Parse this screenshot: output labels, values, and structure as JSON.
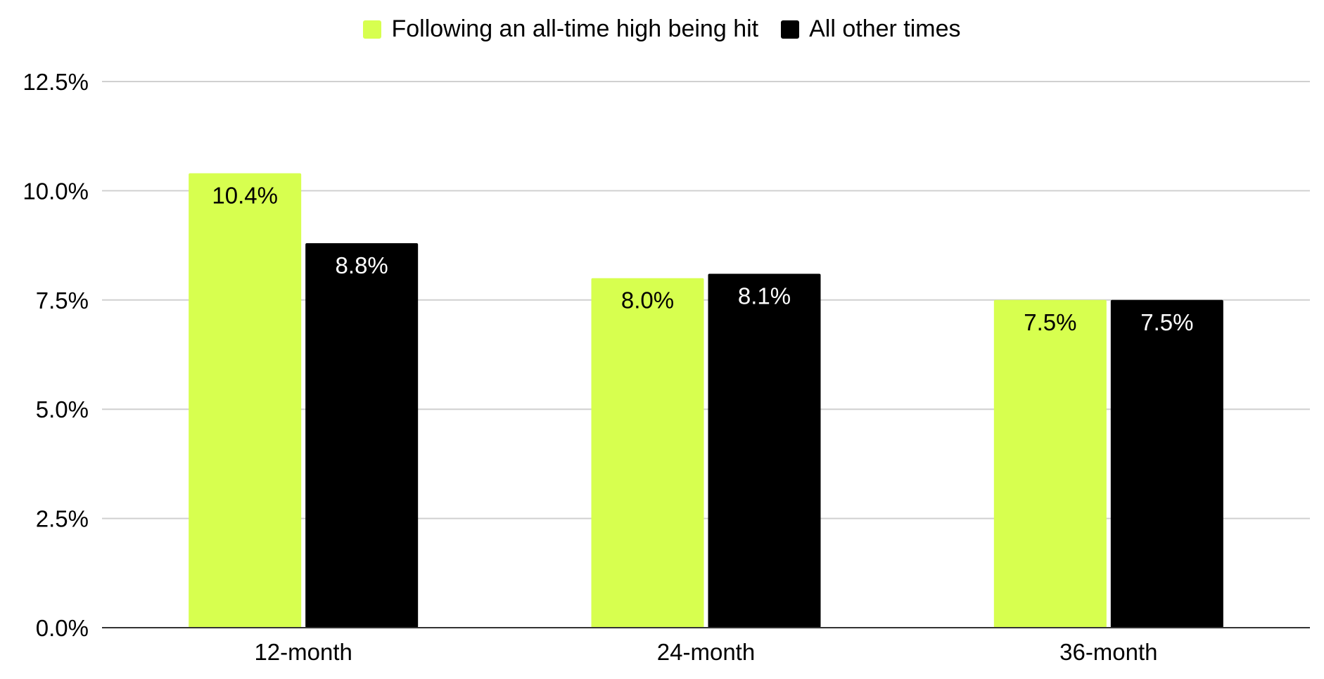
{
  "chart_data": {
    "type": "bar",
    "categories": [
      "12-month",
      "24-month",
      "36-month"
    ],
    "series": [
      {
        "name": "Following an all-time high being hit",
        "values": [
          10.4,
          8.0,
          7.5
        ],
        "labels": [
          "10.4%",
          "8.0%",
          "7.5%"
        ],
        "color": "#d7ff4f",
        "label_color": "#000000"
      },
      {
        "name": "All other times",
        "values": [
          8.8,
          8.1,
          7.5
        ],
        "labels": [
          "8.8%",
          "8.1%",
          "7.5%"
        ],
        "color": "#000000",
        "label_color": "#ffffff"
      }
    ],
    "ylim": [
      0,
      12.5
    ],
    "yticks": [
      0,
      2.5,
      5.0,
      7.5,
      10.0,
      12.5
    ],
    "ytick_labels": [
      "0.0%",
      "2.5%",
      "5.0%",
      "7.5%",
      "10.0%",
      "12.5%"
    ],
    "grid": true,
    "legend_position": "top-center",
    "title": "",
    "xlabel": "",
    "ylabel": ""
  },
  "colors": {
    "gridline": "#d0d0d0",
    "axis": "#333333"
  }
}
